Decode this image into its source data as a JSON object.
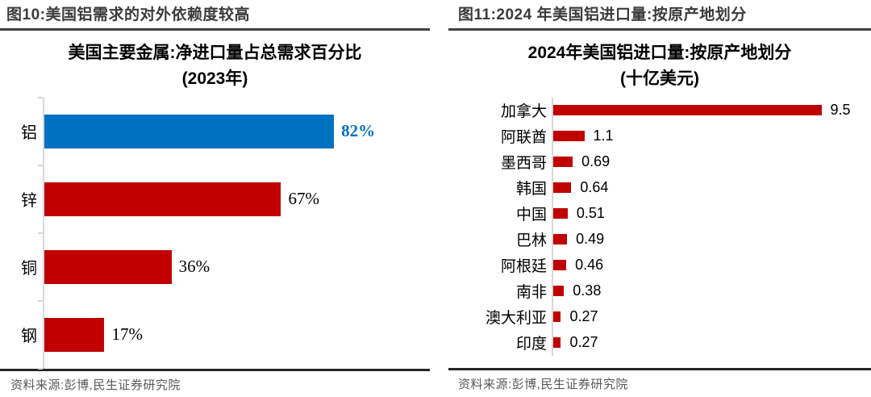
{
  "colors": {
    "bar_red": "#c00000",
    "bar_blue": "#0070c0",
    "axis_line": "#d9d9d9",
    "header_text": "#3b3b3b",
    "header_rule": "#404040",
    "source_rule": "#262626",
    "source_text": "#595959"
  },
  "figures": [
    {
      "header": "图10:美国铝需求的对外依赖度较高",
      "source": "资料来源:彭博,民生证券研究院",
      "chart_data": {
        "type": "bar",
        "orientation": "horizontal",
        "title": "美国主要金属:净进口量占总需求百分比",
        "subtitle": "(2023年)",
        "xlabel": "",
        "ylabel": "",
        "categories": [
          "铝",
          "锌",
          "铜",
          "钢"
        ],
        "values": [
          82,
          67,
          36,
          17
        ],
        "value_labels": [
          "82%",
          "67%",
          "36%",
          "17%"
        ],
        "bar_colors": [
          "#0070c0",
          "#c00000",
          "#c00000",
          "#c00000"
        ],
        "value_label_colors": [
          "#0070c0",
          "#000000",
          "#000000",
          "#000000"
        ],
        "value_label_bold": [
          true,
          false,
          false,
          false
        ],
        "xlim": [
          0,
          100
        ],
        "grid": false,
        "legend": false
      }
    },
    {
      "header": "图11:2024 年美国铝进口量:按原产地划分",
      "source": "资料来源:彭博,民生证券研究院",
      "chart_data": {
        "type": "bar",
        "orientation": "horizontal",
        "title": "2024年美国铝进口量:按原产地划分",
        "subtitle": "(十亿美元)",
        "xlabel": "",
        "ylabel": "",
        "categories": [
          "加拿大",
          "阿联酋",
          "墨西哥",
          "韩国",
          "中国",
          "巴林",
          "阿根廷",
          "南非",
          "澳大利亚",
          "印度"
        ],
        "values": [
          9.5,
          1.1,
          0.69,
          0.64,
          0.51,
          0.49,
          0.46,
          0.38,
          0.27,
          0.27
        ],
        "value_labels": [
          "9.5",
          "1.1",
          "0.69",
          "0.64",
          "0.51",
          "0.49",
          "0.46",
          "0.38",
          "0.27",
          "0.27"
        ],
        "bar_colors": [
          "#c00000",
          "#c00000",
          "#c00000",
          "#c00000",
          "#c00000",
          "#c00000",
          "#c00000",
          "#c00000",
          "#c00000",
          "#c00000"
        ],
        "value_label_colors": [
          "#000000",
          "#000000",
          "#000000",
          "#000000",
          "#000000",
          "#000000",
          "#000000",
          "#000000",
          "#000000",
          "#000000"
        ],
        "value_label_bold": [
          false,
          false,
          false,
          false,
          false,
          false,
          false,
          false,
          false,
          false
        ],
        "xlim": [
          0,
          10
        ],
        "grid": false,
        "legend": false
      }
    }
  ]
}
